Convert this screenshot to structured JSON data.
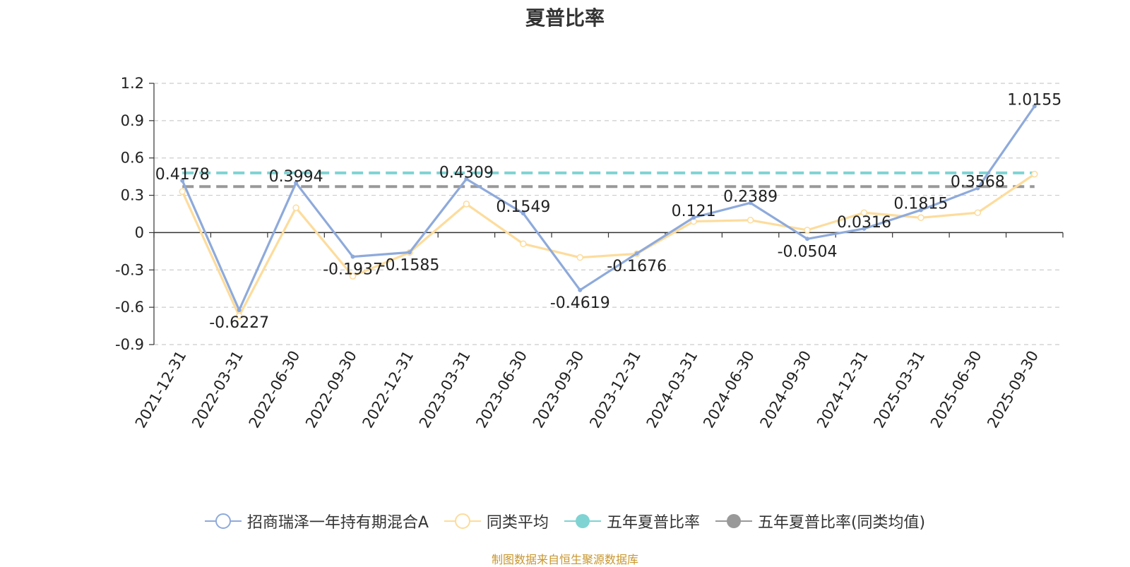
{
  "chart_data": {
    "type": "line",
    "title": "夏普比率",
    "categories": [
      "2021-12-31",
      "2022-03-31",
      "2022-06-30",
      "2022-09-30",
      "2022-12-31",
      "2023-03-31",
      "2023-06-30",
      "2023-09-30",
      "2023-12-31",
      "2024-03-31",
      "2024-06-30",
      "2024-09-30",
      "2024-12-31",
      "2025-03-31",
      "2025-06-30",
      "2025-09-30"
    ],
    "ylim": [
      -0.9,
      1.2
    ],
    "yticks": [
      1.2,
      0.9,
      0.6,
      0.3,
      0,
      -0.3,
      -0.6,
      -0.9
    ],
    "grid": true,
    "legend_position": "bottom",
    "series": [
      {
        "name": "招商瑞泽一年持有期混合A",
        "color": "#8eaadb",
        "values": [
          0.4178,
          -0.6227,
          0.3994,
          -0.1937,
          -0.1585,
          0.4309,
          0.1549,
          -0.4619,
          -0.1676,
          0.121,
          0.2389,
          -0.0504,
          0.0316,
          0.1815,
          0.3568,
          1.0155
        ],
        "labels": [
          "0.4178",
          "-0.6227",
          "0.3994",
          "-0.1937",
          "-0.1585",
          "0.4309",
          "0.1549",
          "-0.4619",
          "-0.1676",
          "0.121",
          "0.2389",
          "-0.0504",
          "0.0316",
          "0.1815",
          "0.3568",
          "1.0155"
        ]
      },
      {
        "name": "同类平均",
        "color": "#fddc9c",
        "values": [
          0.33,
          -0.67,
          0.2,
          -0.35,
          -0.16,
          0.23,
          -0.09,
          -0.2,
          -0.17,
          0.09,
          0.1,
          0.02,
          0.16,
          0.12,
          0.16,
          0.47
        ]
      },
      {
        "name": "五年夏普比率",
        "color": "#7fd3d3",
        "type": "reference",
        "value": 0.48
      },
      {
        "name": "五年夏普比率(同类均值)",
        "color": "#999999",
        "type": "reference",
        "value": 0.37
      }
    ]
  },
  "source_note": "制图数据来自恒生聚源数据库"
}
